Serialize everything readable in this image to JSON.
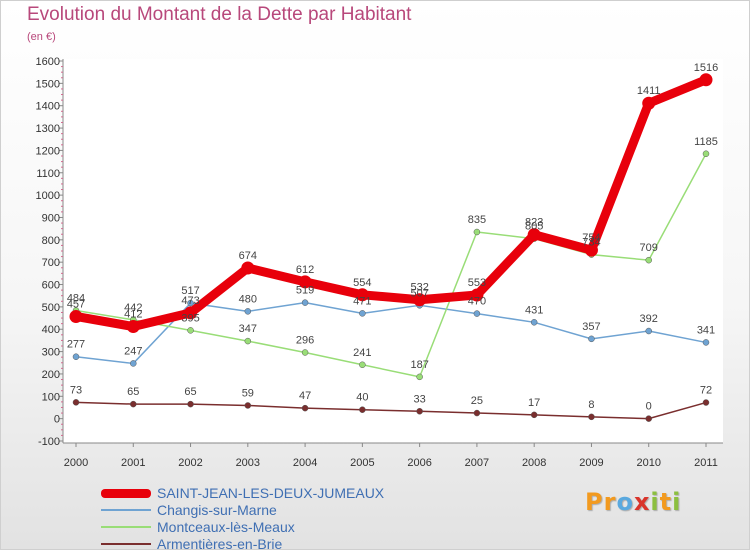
{
  "title": "Evolution du Montant de la Dette par Habitant",
  "unit_label": "(en €)",
  "brand": "Proxiti",
  "brand_letters": [
    {
      "ch": "P",
      "color": "#f29a1f"
    },
    {
      "ch": "r",
      "color": "#f29a1f"
    },
    {
      "ch": "o",
      "color": "#5aa9df"
    },
    {
      "ch": "x",
      "color": "#d9342b"
    },
    {
      "ch": "i",
      "color": "#8cbf3f"
    },
    {
      "ch": "t",
      "color": "#f29a1f"
    },
    {
      "ch": "i",
      "color": "#8cbf3f"
    }
  ],
  "chart_data": {
    "type": "line",
    "title": "Evolution du Montant de la Dette par Habitant",
    "ylabel": "(en €)",
    "xlabel": "",
    "x": [
      "2000",
      "2001",
      "2002",
      "2003",
      "2004",
      "2005",
      "2006",
      "2007",
      "2008",
      "2009",
      "2010",
      "2011"
    ],
    "ylim": [
      -100,
      1600
    ],
    "ytick_step": 100,
    "grid": false,
    "legend_position": "bottom-left",
    "series": [
      {
        "name": "SAINT-JEAN-LES-DEUX-JUMEAUX",
        "color": "#e8000b",
        "highlight": true,
        "values": [
          457,
          412,
          473,
          674,
          612,
          554,
          532,
          553,
          823,
          754,
          1411,
          1516
        ],
        "labels": [
          "457",
          "412",
          "473",
          "674",
          "612",
          "554",
          "532",
          "553",
          "823",
          "754",
          "1411",
          "1516"
        ]
      },
      {
        "name": "Changis-sur-Marne",
        "color": "#6fa3d2",
        "values": [
          277,
          247,
          517,
          480,
          519,
          471,
          507,
          470,
          431,
          357,
          392,
          341
        ],
        "labels": [
          "277",
          "247",
          "517",
          "480",
          "519",
          "471",
          "507",
          "470",
          "431",
          "357",
          "392",
          "341"
        ]
      },
      {
        "name": "Montceaux-lès-Meaux",
        "color": "#99dd77",
        "values": [
          484,
          442,
          395,
          347,
          296,
          241,
          187,
          835,
          805,
          734,
          709,
          1185
        ],
        "labels": [
          "484",
          "442",
          "395",
          "347",
          "296",
          "241",
          "187",
          "835",
          "805",
          "734",
          "709",
          "1185"
        ]
      },
      {
        "name": "Armentières-en-Brie",
        "color": "#7a2e2e",
        "values": [
          73,
          65,
          65,
          59,
          47,
          40,
          33,
          25,
          17,
          8,
          0,
          72
        ],
        "labels": [
          "73",
          "65",
          "65",
          "59",
          "47",
          "40",
          "33",
          "25",
          "17",
          "8",
          "0",
          "72"
        ]
      }
    ]
  }
}
